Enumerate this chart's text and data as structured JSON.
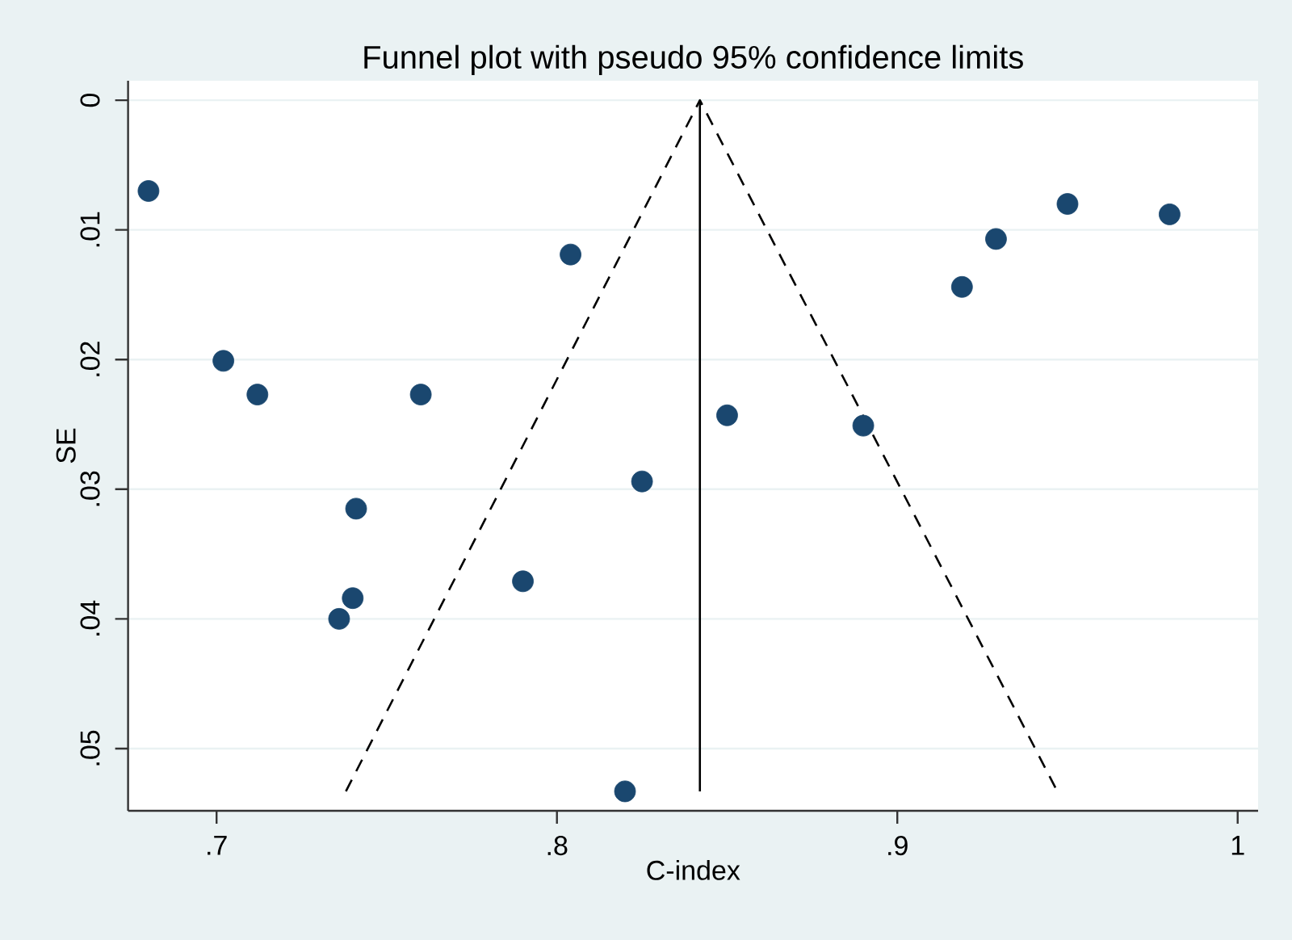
{
  "chart_data": {
    "type": "scatter",
    "title": "Funnel plot with pseudo 95% confidence limits",
    "xlabel": "C-index",
    "ylabel": "SE",
    "xlim": [
      0.674,
      1.006
    ],
    "ylim": [
      0.0548,
      -0.0015
    ],
    "xticks": [
      {
        "value": 0.7,
        "label": ".7"
      },
      {
        "value": 0.8,
        "label": ".8"
      },
      {
        "value": 0.9,
        "label": ".9"
      },
      1
    ],
    "yticks": [
      0,
      {
        "value": 0.01,
        "label": ".01"
      },
      {
        "value": 0.02,
        "label": ".02"
      },
      {
        "value": 0.03,
        "label": ".03"
      },
      {
        "value": 0.04,
        "label": ".04"
      },
      {
        "value": 0.05,
        "label": ".05"
      }
    ],
    "grid": "y",
    "series": [
      {
        "marker": "circle",
        "color": "#1a476f",
        "x": [
          0.68,
          0.702,
          0.712,
          0.76,
          0.804,
          0.741,
          0.74,
          0.736,
          0.79,
          0.825,
          0.82,
          0.85,
          0.89,
          0.919,
          0.929,
          0.95,
          0.98
        ],
        "values": [
          0.007,
          0.0201,
          0.0227,
          0.0227,
          0.0119,
          0.0315,
          0.0384,
          0.04,
          0.0371,
          0.0294,
          0.0533,
          0.0243,
          0.0251,
          0.0144,
          0.0107,
          0.008,
          0.0088
        ]
      },
      {
        "type": "line",
        "color": "#000000",
        "line_style": "solid",
        "x": [
          0.842,
          0.842
        ],
        "values": [
          0.0533,
          0
        ]
      },
      {
        "type": "line",
        "color": "#000000",
        "line_style": "dashed",
        "x": [
          0.738,
          0.842,
          0.947
        ],
        "values": [
          0.0533,
          0,
          0.0533
        ]
      }
    ]
  }
}
